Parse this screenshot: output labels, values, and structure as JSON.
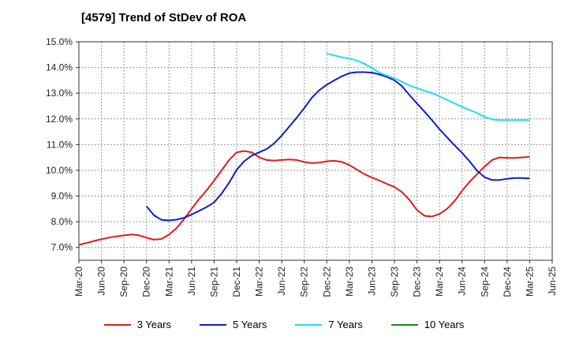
{
  "chart_data": {
    "type": "line",
    "title": "[4579]  Trend of StDev of ROA",
    "xlabel": "",
    "ylabel": "",
    "x_ticks": [
      "Mar-20",
      "Jun-20",
      "Sep-20",
      "Dec-20",
      "Mar-21",
      "Jun-21",
      "Sep-21",
      "Dec-21",
      "Mar-22",
      "Jun-22",
      "Sep-22",
      "Dec-22",
      "Mar-23",
      "Jun-23",
      "Sep-23",
      "Dec-23",
      "Mar-24",
      "Jun-24",
      "Sep-24",
      "Dec-24",
      "Mar-25",
      "Jun-25"
    ],
    "y_ticks": [
      "7.0%",
      "8.0%",
      "9.0%",
      "10.0%",
      "11.0%",
      "12.0%",
      "13.0%",
      "14.0%",
      "15.0%"
    ],
    "ylim": [
      6.5,
      15.0
    ],
    "grid": true,
    "legend_position": "bottom",
    "series": [
      {
        "name": "3 Years",
        "color": "#e31a1c",
        "x": [
          "Mar-20",
          "Apr-20",
          "May-20",
          "Jun-20",
          "Jul-20",
          "Aug-20",
          "Sep-20",
          "Oct-20",
          "Nov-20",
          "Dec-20",
          "Jan-21",
          "Feb-21",
          "Mar-21",
          "Apr-21",
          "May-21",
          "Jun-21",
          "Jul-21",
          "Aug-21",
          "Sep-21",
          "Oct-21",
          "Nov-21",
          "Dec-21",
          "Jan-22",
          "Feb-22",
          "Mar-22",
          "Apr-22",
          "May-22",
          "Jun-22",
          "Jul-22",
          "Aug-22",
          "Sep-22",
          "Oct-22",
          "Nov-22",
          "Dec-22",
          "Jan-23",
          "Feb-23",
          "Mar-23",
          "Apr-23",
          "May-23",
          "Jun-23",
          "Jul-23",
          "Aug-23",
          "Sep-23",
          "Oct-23",
          "Nov-23",
          "Dec-23",
          "Jan-24",
          "Feb-24",
          "Mar-24",
          "Apr-24",
          "May-24",
          "Jun-24",
          "Jul-24",
          "Aug-24",
          "Sep-24",
          "Oct-24",
          "Nov-24",
          "Dec-24",
          "Jan-25",
          "Feb-25",
          "Mar-25"
        ],
        "values": [
          7.1,
          7.17,
          7.25,
          7.32,
          7.38,
          7.43,
          7.47,
          7.5,
          7.47,
          7.38,
          7.3,
          7.33,
          7.5,
          7.75,
          8.1,
          8.5,
          8.88,
          9.22,
          9.6,
          10.0,
          10.4,
          10.7,
          10.75,
          10.7,
          10.5,
          10.4,
          10.38,
          10.4,
          10.42,
          10.4,
          10.32,
          10.28,
          10.3,
          10.35,
          10.37,
          10.33,
          10.2,
          10.03,
          9.85,
          9.72,
          9.6,
          9.47,
          9.35,
          9.15,
          8.85,
          8.45,
          8.23,
          8.2,
          8.3,
          8.5,
          8.8,
          9.2,
          9.55,
          9.85,
          10.15,
          10.4,
          10.5,
          10.48,
          10.48,
          10.5,
          10.53
        ]
      },
      {
        "name": "5 Years",
        "color": "#0a1fcc",
        "x": [
          "Dec-20",
          "Jan-21",
          "Feb-21",
          "Mar-21",
          "Apr-21",
          "May-21",
          "Jun-21",
          "Jul-21",
          "Aug-21",
          "Sep-21",
          "Oct-21",
          "Nov-21",
          "Dec-21",
          "Jan-22",
          "Feb-22",
          "Mar-22",
          "Apr-22",
          "May-22",
          "Jun-22",
          "Jul-22",
          "Aug-22",
          "Sep-22",
          "Oct-22",
          "Nov-22",
          "Dec-22",
          "Jan-23",
          "Feb-23",
          "Mar-23",
          "Apr-23",
          "May-23",
          "Jun-23",
          "Jul-23",
          "Aug-23",
          "Sep-23",
          "Oct-23",
          "Nov-23",
          "Dec-23",
          "Jan-24",
          "Feb-24",
          "Mar-24",
          "Apr-24",
          "May-24",
          "Jun-24",
          "Jul-24",
          "Aug-24",
          "Sep-24",
          "Oct-24",
          "Nov-24",
          "Dec-24",
          "Jan-25",
          "Feb-25",
          "Mar-25"
        ],
        "values": [
          8.6,
          8.25,
          8.07,
          8.05,
          8.08,
          8.15,
          8.28,
          8.42,
          8.57,
          8.75,
          9.1,
          9.52,
          10.02,
          10.35,
          10.57,
          10.7,
          10.83,
          11.05,
          11.35,
          11.7,
          12.05,
          12.42,
          12.82,
          13.12,
          13.33,
          13.5,
          13.66,
          13.78,
          13.82,
          13.82,
          13.8,
          13.73,
          13.63,
          13.5,
          13.28,
          12.93,
          12.6,
          12.28,
          11.95,
          11.6,
          11.28,
          10.97,
          10.68,
          10.35,
          9.98,
          9.73,
          9.62,
          9.62,
          9.67,
          9.7,
          9.7,
          9.68
        ]
      },
      {
        "name": "7 Years",
        "color": "#1fe0e8",
        "x": [
          "Dec-22",
          "Jan-23",
          "Feb-23",
          "Mar-23",
          "Apr-23",
          "May-23",
          "Jun-23",
          "Jul-23",
          "Aug-23",
          "Sep-23",
          "Oct-23",
          "Nov-23",
          "Dec-23",
          "Jan-24",
          "Feb-24",
          "Mar-24",
          "Apr-24",
          "May-24",
          "Jun-24",
          "Jul-24",
          "Aug-24",
          "Sep-24",
          "Oct-24",
          "Nov-24",
          "Dec-24",
          "Jan-25",
          "Feb-25",
          "Mar-25"
        ],
        "values": [
          14.55,
          14.47,
          14.4,
          14.35,
          14.27,
          14.15,
          13.98,
          13.8,
          13.68,
          13.58,
          13.45,
          13.3,
          13.2,
          13.1,
          13.0,
          12.88,
          12.74,
          12.6,
          12.47,
          12.35,
          12.23,
          12.08,
          11.98,
          11.95,
          11.95,
          11.95,
          11.95,
          11.95
        ]
      },
      {
        "name": "10 Years",
        "color": "#1a8a1a",
        "x": [],
        "values": []
      }
    ]
  }
}
